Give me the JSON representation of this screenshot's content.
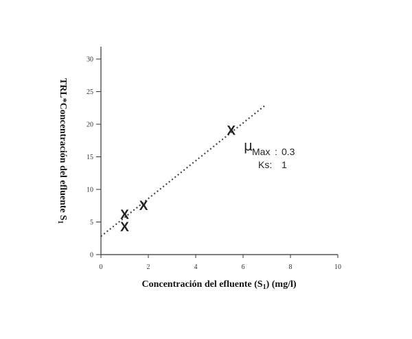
{
  "chart_data": {
    "type": "scatter",
    "xlabel": "Concentración del efluente (S1) (mg/l)",
    "xlabel_parts": {
      "main": "Concentración del efluente (S",
      "sub": "1",
      "tail": ") (mg/l)"
    },
    "ylabel": "TRL*Concentración del efluente S1",
    "ylabel_parts": {
      "main": "TRL*Concentración del efluente S",
      "sub": "1"
    },
    "xlim": [
      0,
      10
    ],
    "ylim": [
      0,
      30
    ],
    "x_ticks": [
      0,
      2,
      4,
      6,
      8,
      10
    ],
    "y_ticks": [
      0,
      5,
      10,
      15,
      20,
      25,
      30
    ],
    "grid": false,
    "marker": "x",
    "points": [
      {
        "x": 1.0,
        "y": 4.2
      },
      {
        "x": 1.0,
        "y": 6.1
      },
      {
        "x": 1.8,
        "y": 7.5
      },
      {
        "x": 5.5,
        "y": 19.0
      }
    ],
    "trendline": {
      "style": "dotted",
      "x1": 0.0,
      "y1": 2.8,
      "x2": 6.9,
      "y2": 22.8
    },
    "annotation": {
      "mu_symbol": "μ",
      "mu_sub": "Max",
      "mu_value": "0.3",
      "ks_label": "Ks:",
      "ks_value": "1"
    }
  }
}
